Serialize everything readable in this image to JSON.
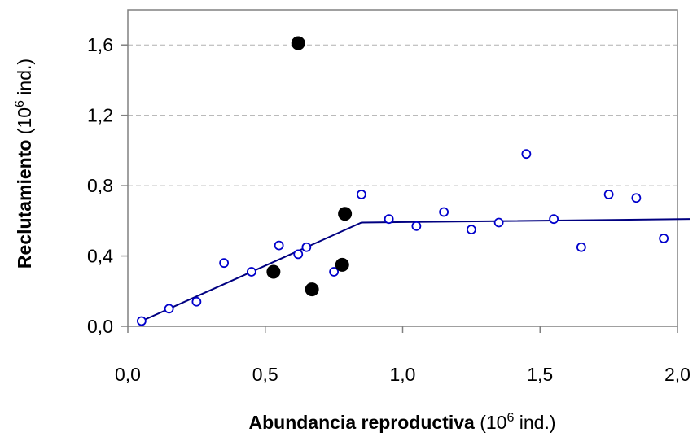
{
  "chart_data": {
    "type": "scatter",
    "xlabel_bold": "Abundancia reproductiva",
    "xlabel_unit_pre": " (10",
    "xlabel_unit_sup": "6",
    "xlabel_unit_post": " ind.)",
    "ylabel_bold": "Reclutamiento",
    "ylabel_unit_pre": "  (10",
    "ylabel_unit_sup": "6",
    "ylabel_unit_post": " ind.)",
    "xlim": [
      0.0,
      2.0
    ],
    "ylim": [
      0.0,
      1.8
    ],
    "x_ticks": [
      {
        "value": 0.0,
        "label": "0,0"
      },
      {
        "value": 0.5,
        "label": "0,5"
      },
      {
        "value": 1.0,
        "label": "1,0"
      },
      {
        "value": 1.5,
        "label": "1,5"
      },
      {
        "value": 2.0,
        "label": "2,0"
      }
    ],
    "y_ticks": [
      {
        "value": 0.0,
        "label": "0,0"
      },
      {
        "value": 0.4,
        "label": "0,4"
      },
      {
        "value": 0.8,
        "label": "0,8"
      },
      {
        "value": 1.2,
        "label": "1,2"
      },
      {
        "value": 1.6,
        "label": "1,6"
      }
    ],
    "grid": "horizontal dashed",
    "series": [
      {
        "marker": "open-circle",
        "color": "#0000cc",
        "points": [
          [
            0.05,
            0.03
          ],
          [
            0.15,
            0.1
          ],
          [
            0.25,
            0.14
          ],
          [
            0.35,
            0.36
          ],
          [
            0.45,
            0.31
          ],
          [
            0.55,
            0.46
          ],
          [
            0.62,
            0.41
          ],
          [
            0.65,
            0.45
          ],
          [
            0.75,
            0.31
          ],
          [
            0.85,
            0.75
          ],
          [
            0.95,
            0.61
          ],
          [
            1.05,
            0.57
          ],
          [
            1.15,
            0.65
          ],
          [
            1.25,
            0.55
          ],
          [
            1.35,
            0.59
          ],
          [
            1.45,
            0.98
          ],
          [
            1.55,
            0.61
          ],
          [
            1.65,
            0.45
          ],
          [
            1.75,
            0.75
          ],
          [
            1.85,
            0.73
          ],
          [
            1.95,
            0.5
          ]
        ]
      },
      {
        "marker": "filled-circle",
        "color": "#000000",
        "points": [
          [
            0.53,
            0.31
          ],
          [
            0.62,
            1.61
          ],
          [
            0.67,
            0.21
          ],
          [
            0.78,
            0.35
          ],
          [
            0.79,
            0.64
          ]
        ]
      }
    ],
    "fit_line": {
      "type": "hockey-stick",
      "color": "#000080",
      "points": [
        [
          0.05,
          0.03
        ],
        [
          0.85,
          0.59
        ],
        [
          2.0,
          0.61
        ]
      ]
    }
  }
}
